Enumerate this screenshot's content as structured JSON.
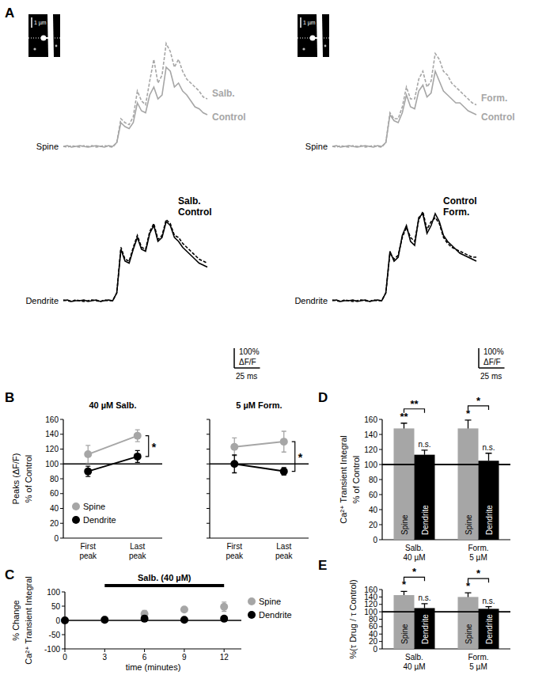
{
  "chart_data": [
    {
      "type": "line",
      "panel_label": "A",
      "title": "Spine",
      "image_scale_label": "1 µm",
      "tick_labels": false,
      "x": [
        0,
        4,
        8,
        12,
        16,
        20,
        24,
        28,
        32,
        36,
        40,
        44,
        48,
        52,
        56,
        60,
        64,
        68,
        72,
        76,
        80,
        84,
        88,
        92,
        96,
        100,
        104,
        108,
        112,
        116,
        120,
        124,
        128,
        132,
        136,
        140
      ],
      "xlim": [
        0,
        140
      ],
      "ylim": [
        -60,
        620
      ],
      "series": [
        {
          "name": "Control",
          "color": "#a6a6a6",
          "line_style": "solid",
          "values": [
            0,
            4,
            -4,
            0,
            4,
            0,
            -4,
            0,
            4,
            0,
            -4,
            4,
            0,
            20,
            120,
            100,
            90,
            120,
            220,
            180,
            170,
            260,
            300,
            240,
            260,
            400,
            380,
            300,
            320,
            280,
            260,
            230,
            200,
            190,
            170,
            160
          ]
        },
        {
          "name": "Salb.",
          "color": "#a6a6a6",
          "line_style": "dashed",
          "values": [
            0,
            -4,
            4,
            0,
            -4,
            4,
            0,
            4,
            -4,
            0,
            4,
            0,
            -4,
            20,
            140,
            120,
            110,
            150,
            280,
            230,
            210,
            330,
            440,
            320,
            360,
            520,
            480,
            400,
            440,
            380,
            340,
            320,
            300,
            280,
            250,
            240
          ]
        }
      ]
    },
    {
      "type": "line",
      "title": "Dendrite",
      "tick_labels": false,
      "x": [
        0,
        4,
        8,
        12,
        16,
        20,
        24,
        28,
        32,
        36,
        40,
        44,
        48,
        52,
        56,
        60,
        64,
        68,
        72,
        76,
        80,
        84,
        88,
        92,
        96,
        100,
        104,
        108,
        112,
        116,
        120,
        124,
        128,
        132,
        136,
        140
      ],
      "xlim": [
        0,
        140
      ],
      "ylim": [
        -80,
        500
      ],
      "scale_bars": [
        {
          "axis": "y",
          "value": 100,
          "label": "100%",
          "unit_label": "ΔF/F"
        },
        {
          "axis": "x",
          "value": 25,
          "label": "25 ms"
        }
      ],
      "series": [
        {
          "name": "Control",
          "color": "#000000",
          "line_style": "solid",
          "values": [
            0,
            4,
            -4,
            0,
            0,
            4,
            -4,
            0,
            4,
            -4,
            0,
            4,
            0,
            40,
            260,
            200,
            190,
            260,
            320,
            260,
            250,
            340,
            380,
            300,
            320,
            400,
            380,
            320,
            300,
            270,
            250,
            230,
            210,
            190,
            180,
            170
          ]
        },
        {
          "name": "Salb.",
          "color": "#000000",
          "line_style": "dashed",
          "values": [
            4,
            0,
            -4,
            4,
            0,
            -4,
            0,
            4,
            0,
            -4,
            4,
            0,
            0,
            40,
            270,
            210,
            200,
            270,
            330,
            270,
            260,
            350,
            390,
            310,
            330,
            410,
            390,
            330,
            320,
            290,
            270,
            250,
            230,
            210,
            200,
            190
          ]
        }
      ]
    },
    {
      "type": "line",
      "title": "Spine",
      "image_scale_label": "1 µm",
      "tick_labels": false,
      "x": [
        0,
        4,
        8,
        12,
        16,
        20,
        24,
        28,
        32,
        36,
        40,
        44,
        48,
        52,
        56,
        60,
        64,
        68,
        72,
        76,
        80,
        84,
        88,
        92,
        96,
        100,
        104,
        108,
        112,
        116,
        120,
        124,
        128,
        132,
        136,
        140
      ],
      "xlim": [
        0,
        140
      ],
      "ylim": [
        -60,
        620
      ],
      "series": [
        {
          "name": "Control",
          "color": "#a6a6a6",
          "line_style": "solid",
          "values": [
            0,
            4,
            -4,
            0,
            4,
            0,
            -4,
            0,
            4,
            0,
            -4,
            4,
            0,
            20,
            160,
            130,
            120,
            170,
            260,
            200,
            190,
            280,
            310,
            250,
            270,
            380,
            330,
            280,
            260,
            240,
            220,
            220,
            200,
            180,
            170,
            160
          ]
        },
        {
          "name": "Form.",
          "color": "#a6a6a6",
          "line_style": "dashed",
          "values": [
            0,
            -4,
            4,
            0,
            -4,
            4,
            0,
            4,
            -4,
            0,
            4,
            0,
            -4,
            20,
            170,
            140,
            140,
            200,
            300,
            240,
            240,
            340,
            380,
            300,
            330,
            470,
            440,
            380,
            360,
            320,
            300,
            280,
            260,
            240,
            220,
            210
          ]
        }
      ]
    },
    {
      "type": "line",
      "title": "Dendrite",
      "tick_labels": false,
      "x": [
        0,
        4,
        8,
        12,
        16,
        20,
        24,
        28,
        32,
        36,
        40,
        44,
        48,
        52,
        56,
        60,
        64,
        68,
        72,
        76,
        80,
        84,
        88,
        92,
        96,
        100,
        104,
        108,
        112,
        116,
        120,
        124,
        128,
        132,
        136,
        140
      ],
      "xlim": [
        0,
        140
      ],
      "ylim": [
        -80,
        500
      ],
      "scale_bars": [
        {
          "axis": "y",
          "value": 100,
          "label": "100%",
          "unit_label": "ΔF/F"
        },
        {
          "axis": "x",
          "value": 25,
          "label": "25 ms"
        }
      ],
      "series": [
        {
          "name": "Control",
          "color": "#000000",
          "line_style": "solid",
          "values": [
            0,
            4,
            -4,
            0,
            0,
            4,
            -4,
            0,
            4,
            -4,
            0,
            4,
            0,
            40,
            250,
            200,
            220,
            330,
            380,
            300,
            280,
            420,
            440,
            340,
            380,
            440,
            400,
            330,
            300,
            280,
            260,
            240,
            230,
            220,
            210,
            200
          ]
        },
        {
          "name": "Form.",
          "color": "#000000",
          "line_style": "dashed",
          "values": [
            4,
            0,
            -4,
            4,
            0,
            -4,
            0,
            4,
            0,
            -4,
            4,
            0,
            0,
            40,
            240,
            210,
            230,
            320,
            370,
            320,
            300,
            410,
            450,
            360,
            400,
            420,
            390,
            320,
            290,
            270,
            260,
            250,
            240,
            230,
            220,
            220
          ]
        }
      ]
    },
    {
      "type": "line",
      "panel_label": "B",
      "title": "40 µM Salb.",
      "categories": [
        "First peak",
        "Last peak"
      ],
      "ylim": [
        0,
        160
      ],
      "yticks": [
        0,
        20,
        40,
        60,
        80,
        100,
        120,
        140,
        160
      ],
      "y_label": [
        "Peaks (ΔF/F)",
        "% of Control"
      ],
      "reference_line": 100,
      "legend": "lower left",
      "bracket_label": "*",
      "series": [
        {
          "name": "Spine",
          "color": "#a6a6a6",
          "marker": "circle",
          "values": [
            113,
            138
          ],
          "errors": [
            12,
            8
          ]
        },
        {
          "name": "Dendrite",
          "color": "#000000",
          "marker": "circle",
          "values": [
            90,
            110
          ],
          "errors": [
            7,
            8
          ]
        }
      ]
    },
    {
      "type": "line",
      "title": "5 µM Form.",
      "categories": [
        "First peak",
        "Last peak"
      ],
      "tick_labels": "x",
      "ylim": [
        0,
        160
      ],
      "yticks": [
        0,
        20,
        40,
        60,
        80,
        100,
        120,
        140,
        160
      ],
      "reference_line": 100,
      "bracket_label": "*",
      "series": [
        {
          "color": "#a6a6a6",
          "marker": "circle",
          "values": [
            123,
            130
          ],
          "errors": [
            12,
            14
          ]
        },
        {
          "color": "#000000",
          "marker": "circle",
          "values": [
            100,
            90
          ],
          "errors": [
            12,
            5
          ]
        }
      ]
    },
    {
      "type": "scatter",
      "panel_label": "C",
      "x": [
        0,
        3,
        6,
        9,
        12
      ],
      "xlim": [
        0,
        13.3
      ],
      "xticks": [
        0,
        3,
        6,
        9,
        12
      ],
      "ylim": [
        -100,
        100
      ],
      "yticks": [
        -100,
        -50,
        0,
        50,
        100
      ],
      "x_label": "time (minutes)",
      "y_label": [
        "% Change",
        "Ca²⁺ Transient Integral"
      ],
      "reference_line": 0,
      "drug_bar": {
        "label": "Salb. (40 µM)",
        "start": 3,
        "end": 12
      },
      "legend": "upper right",
      "series": [
        {
          "name": "Spine",
          "color": "#a6a6a6",
          "marker": "circle",
          "values": [
            0,
            2,
            23,
            38,
            48
          ],
          "errors": [
            0,
            8,
            12,
            4,
            16
          ]
        },
        {
          "name": "Dendrite",
          "color": "#000000",
          "marker": "circle",
          "values": [
            0,
            2,
            6,
            2,
            6
          ],
          "errors": [
            0,
            8,
            10,
            6,
            6
          ]
        }
      ]
    },
    {
      "type": "bar",
      "panel_label": "D",
      "categories": [
        "Salb. 40 µM",
        "Form. 5 µM"
      ],
      "ylim": [
        0,
        160
      ],
      "yticks": [
        0,
        20,
        40,
        60,
        80,
        100,
        120,
        140,
        160
      ],
      "y_label": [
        "Ca²⁺ Transient Integral",
        "% of Control"
      ],
      "reference_line": 100,
      "bracket_labels": [
        "**",
        "*"
      ],
      "series": [
        {
          "name": "Spine",
          "color": "#a6a6a6",
          "values": [
            148,
            148
          ],
          "errors": [
            7,
            11
          ],
          "sig_labels": [
            "**",
            "*"
          ]
        },
        {
          "name": "Dendrite",
          "color": "#000000",
          "values": [
            113,
            105
          ],
          "errors": [
            6,
            10
          ],
          "sig_labels": [
            "n.s.",
            "n.s."
          ]
        }
      ]
    },
    {
      "type": "bar",
      "panel_label": "E",
      "categories": [
        "Salb. 40 µM",
        "Form. 5 µM"
      ],
      "ylim": [
        0,
        160
      ],
      "yticks": [
        0,
        20,
        40,
        60,
        80,
        100,
        120,
        140,
        160
      ],
      "y_label": [
        "%(τ Drug / τ Control)"
      ],
      "reference_line": 100,
      "bracket_labels": [
        "*",
        "*"
      ],
      "series": [
        {
          "name": "Spine",
          "color": "#a6a6a6",
          "values": [
            145,
            140
          ],
          "errors": [
            10,
            11
          ],
          "sig_labels": [
            "*",
            "*"
          ]
        },
        {
          "name": "Dendrite",
          "color": "#000000",
          "values": [
            110,
            108
          ],
          "errors": [
            12,
            6
          ],
          "sig_labels": [
            "n.s.",
            "n.s."
          ]
        }
      ]
    }
  ]
}
